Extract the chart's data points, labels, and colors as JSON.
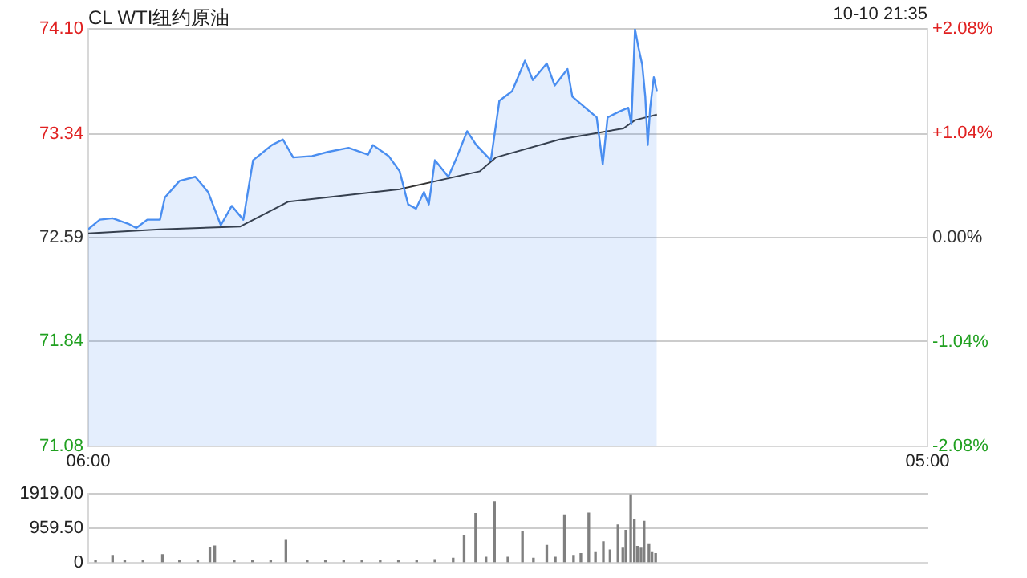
{
  "chart_data": [
    {
      "type": "line",
      "title": "CL WTI纽约原油",
      "annotations": [
        "10-10 21:35"
      ],
      "xlim": [
        "--10-10T06:00",
        "--10-11T05:00"
      ],
      "xticks": [
        {
          "value": "--10-10T06:00",
          "label": "06:00"
        },
        {
          "value": "--10-11T05:00",
          "label": "05:00"
        }
      ],
      "ylim": [
        71.08,
        74.1
      ],
      "yticks": [
        {
          "value": 71.08,
          "label": "71.08"
        },
        {
          "value": 71.84,
          "label": "71.84"
        },
        {
          "value": 72.59,
          "label": "72.59"
        },
        {
          "value": 73.34,
          "label": "73.34"
        },
        {
          "value": 74.1,
          "label": "74.10"
        }
      ],
      "y2lim": [
        -2.08,
        2.08
      ],
      "y2ticks": [
        {
          "value": -2.08,
          "label": "-2.08%"
        },
        {
          "value": -1.04,
          "label": "-1.04%"
        },
        {
          "value": 0,
          "label": "0.00%"
        },
        {
          "value": 1.04,
          "label": "+1.04%"
        },
        {
          "value": 2.08,
          "label": "+2.08%"
        }
      ],
      "grid": "y",
      "legend": false,
      "marker": "none",
      "series": [
        {
          "type": "area",
          "color": "#4a8ef0",
          "x": [
            "--10-10T06:00",
            "--10-10T06:19",
            "--10-10T06:40",
            "--10-10T07:06",
            "--10-10T07:19",
            "--10-10T07:37",
            "--10-10T07:58",
            "--10-10T08:06",
            "--10-10T08:30",
            "--10-10T08:56",
            "--10-10T09:17",
            "--10-10T09:38",
            "--10-10T09:56",
            "--10-10T10:15",
            "--10-10T10:31",
            "--10-10T11:02",
            "--10-10T11:20",
            "--10-10T11:37",
            "--10-10T12:08",
            "--10-10T12:34",
            "--10-10T13:08",
            "--10-10T13:40",
            "--10-10T13:48",
            "--10-10T14:14",
            "--10-10T14:32",
            "--10-10T14:46",
            "--10-10T14:59",
            "--10-10T15:12",
            "--10-10T15:20",
            "--10-10T15:30",
            "--10-10T15:52",
            "--10-10T16:04",
            "--10-10T16:23",
            "--10-10T16:38",
            "--10-10T17:02",
            "--10-10T17:16",
            "--10-10T17:37",
            "--10-10T17:58",
            "--10-10T18:11",
            "--10-10T18:34",
            "--10-10T18:47",
            "--10-10T19:08",
            "--10-10T19:16",
            "--10-10T19:40",
            "--10-10T19:56",
            "--10-10T20:06",
            "--10-10T20:14",
            "--10-10T20:32",
            "--10-10T20:48",
            "--10-10T20:53",
            "--10-10T20:59",
            "--10-10T21:05",
            "--10-10T21:11",
            "--10-10T21:16",
            "--10-10T21:20",
            "--10-10T21:24",
            "--10-10T21:30",
            "--10-10T21:35"
          ],
          "values": [
            72.65,
            72.72,
            72.73,
            72.69,
            72.66,
            72.72,
            72.72,
            72.88,
            73.0,
            73.03,
            72.92,
            72.68,
            72.82,
            72.72,
            73.15,
            73.26,
            73.3,
            73.17,
            73.18,
            73.21,
            73.24,
            73.19,
            73.26,
            73.18,
            73.07,
            72.83,
            72.8,
            72.92,
            72.83,
            73.15,
            73.03,
            73.15,
            73.36,
            73.26,
            73.15,
            73.58,
            73.65,
            73.87,
            73.73,
            73.85,
            73.69,
            73.81,
            73.61,
            73.52,
            73.46,
            73.12,
            73.46,
            73.5,
            73.53,
            73.41,
            74.1,
            73.96,
            73.84,
            73.61,
            73.26,
            73.53,
            73.75,
            73.65
          ]
        },
        {
          "type": "line",
          "color": "#333333",
          "x": [
            "--10-10T06:00",
            "--10-10T07:58",
            "--10-10T10:10",
            "--10-10T11:29",
            "--10-10T14:32",
            "--10-10T16:44",
            "--10-10T17:10",
            "--10-10T18:55",
            "--10-10T20:40",
            "--10-10T20:59",
            "--10-10T21:35"
          ],
          "values": [
            72.62,
            72.65,
            72.67,
            72.85,
            72.94,
            73.07,
            73.17,
            73.3,
            73.38,
            73.44,
            73.48
          ]
        }
      ]
    },
    {
      "type": "bar",
      "xlim": [
        "--10-10T06:00",
        "--10-11T05:00"
      ],
      "ylim": [
        0,
        1919
      ],
      "yticks": [
        0,
        {
          "value": 959.5,
          "label": "959.50"
        },
        {
          "value": 1919,
          "label": "1919.00"
        }
      ],
      "tick_labels": "y",
      "grid": "y",
      "legend": false,
      "color": "#808080",
      "x": [
        "--10-10T06:12",
        "--10-10T06:40",
        "--10-10T07:00",
        "--10-10T07:30",
        "--10-10T08:02",
        "--10-10T08:30",
        "--10-10T09:00",
        "--10-10T09:20",
        "--10-10T09:28",
        "--10-10T10:00",
        "--10-10T10:30",
        "--10-10T11:00",
        "--10-10T11:25",
        "--10-10T12:00",
        "--10-10T12:30",
        "--10-10T13:00",
        "--10-10T13:30",
        "--10-10T14:00",
        "--10-10T14:30",
        "--10-10T15:00",
        "--10-10T15:30",
        "--10-10T16:00",
        "--10-10T16:18",
        "--10-10T16:37",
        "--10-10T16:54",
        "--10-10T17:08",
        "--10-10T17:30",
        "--10-10T17:54",
        "--10-10T18:12",
        "--10-10T18:34",
        "--10-10T18:48",
        "--10-10T19:03",
        "--10-10T19:18",
        "--10-10T19:30",
        "--10-10T19:43",
        "--10-10T19:54",
        "--10-10T20:07",
        "--10-10T20:18",
        "--10-10T20:31",
        "--10-10T20:39",
        "--10-10T20:44",
        "--10-10T20:52",
        "--10-10T20:58",
        "--10-10T21:03",
        "--10-10T21:09",
        "--10-10T21:14",
        "--10-10T21:22",
        "--10-10T21:27",
        "--10-10T21:33"
      ],
      "values": [
        60,
        200,
        50,
        60,
        220,
        50,
        70,
        420,
        460,
        60,
        50,
        60,
        620,
        50,
        60,
        50,
        60,
        50,
        60,
        70,
        80,
        120,
        750,
        1370,
        150,
        1700,
        150,
        860,
        120,
        480,
        150,
        1330,
        200,
        250,
        1380,
        300,
        580,
        350,
        1050,
        400,
        900,
        1900,
        1200,
        450,
        400,
        1150,
        500,
        300,
        250
      ]
    }
  ]
}
